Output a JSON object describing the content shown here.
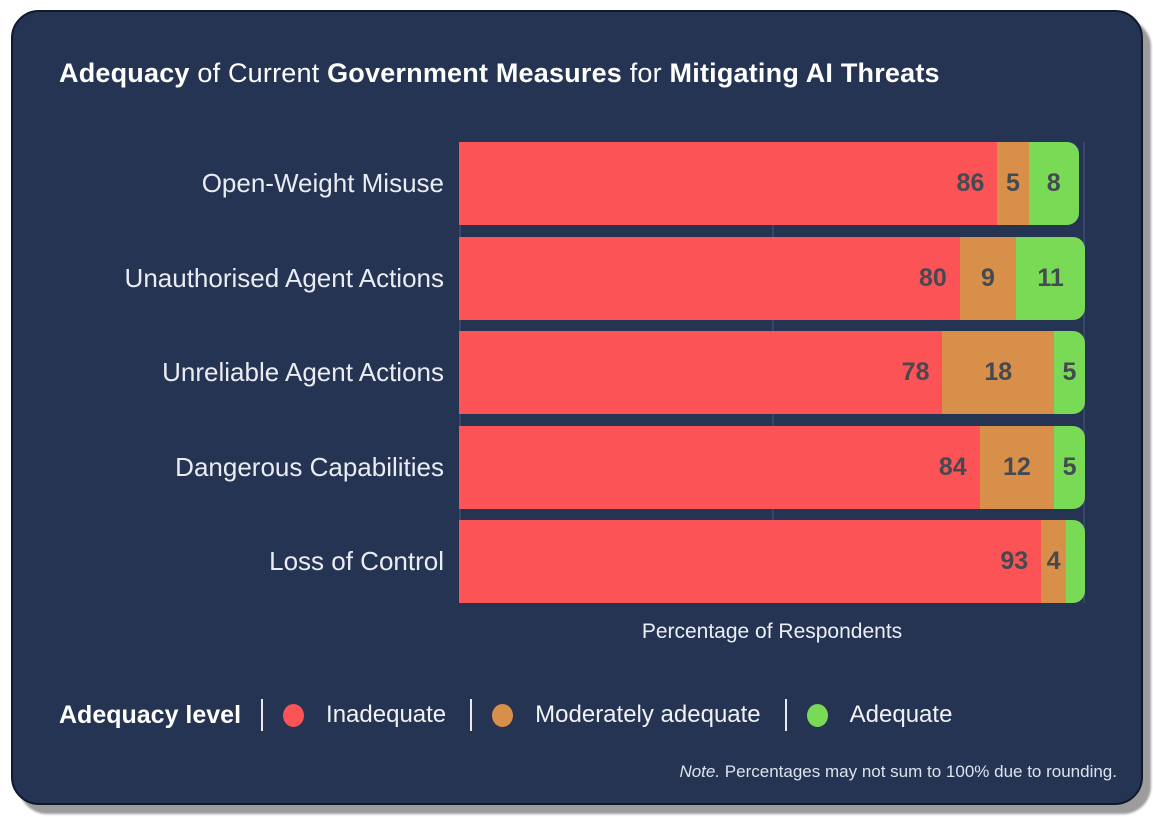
{
  "title": {
    "full": "Adequacy of Current Government Measures for Mitigating AI Threats",
    "parts": [
      {
        "text": "Adequacy",
        "bold": true
      },
      {
        "text": " of Current ",
        "bold": false
      },
      {
        "text": "Government Measures",
        "bold": true
      },
      {
        "text": " for ",
        "bold": false
      },
      {
        "text": "Mitigating AI Threats",
        "bold": true
      }
    ]
  },
  "chart_data": {
    "type": "bar",
    "variant": "horizontal-stacked",
    "title": "Adequacy of Current Government Measures for Mitigating AI Threats",
    "categories": [
      "Open-Weight Misuse",
      "Unauthorised Agent Actions",
      "Unreliable Agent Actions",
      "Dangerous Capabilities",
      "Loss of Control"
    ],
    "series": [
      {
        "name": "Inadequate",
        "color": "#fc5356",
        "values": [
          86,
          80,
          78,
          84,
          93
        ]
      },
      {
        "name": "Moderately adequate",
        "color": "#d88f4a",
        "values": [
          5,
          9,
          18,
          12,
          4
        ]
      },
      {
        "name": "Adequate",
        "color": "#79da55",
        "values": [
          8,
          11,
          5,
          5,
          3
        ]
      }
    ],
    "segment_labels": [
      [
        "86",
        "5",
        "8"
      ],
      [
        "80",
        "9",
        "11"
      ],
      [
        "78",
        "18",
        "5"
      ],
      [
        "84",
        "12",
        "5"
      ],
      [
        "93",
        "4",
        ""
      ]
    ],
    "xlabel": "Percentage of Respondents",
    "xlim": [
      0,
      100
    ],
    "gridlines_pct": [
      0,
      50,
      100
    ],
    "legend_position": "bottom",
    "grid": true
  },
  "legend": {
    "label": "Adequacy level",
    "items": [
      {
        "label": "Inadequate",
        "color": "#fc5356"
      },
      {
        "label": "Moderately adequate",
        "color": "#d88f4a"
      },
      {
        "label": "Adequate",
        "color": "#79da55"
      }
    ]
  },
  "note": {
    "prefix": "Note.",
    "text": " Percentages may not sum to 100% due to rounding."
  },
  "colors": {
    "card_background": "#253452",
    "card_border": "#10182b",
    "gridline": "#35466b",
    "value_text": "#454a52",
    "category_text": "#e9ecf3",
    "title_text": "#ffffff",
    "note_text": "#dde2ee",
    "page_background": "#ffffff",
    "shadow": "#9c9c9c"
  }
}
